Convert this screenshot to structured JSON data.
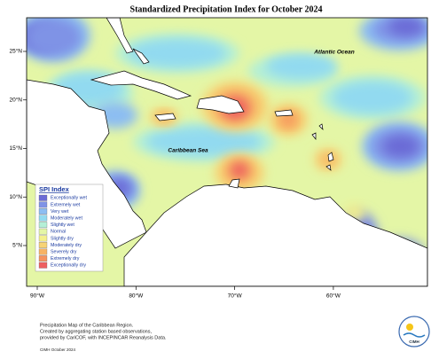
{
  "title": "Standardized Precipitation Index for October 2024",
  "map": {
    "lon_ticks": [
      {
        "value": -90,
        "label": "90°W"
      },
      {
        "value": -80,
        "label": "80°W"
      },
      {
        "value": -70,
        "label": "70°W"
      },
      {
        "value": -60,
        "label": "60°W"
      }
    ],
    "lat_ticks": [
      {
        "value": 25,
        "label": "25°N"
      },
      {
        "value": 20,
        "label": "20°N"
      },
      {
        "value": 15,
        "label": "15°N"
      },
      {
        "value": 10,
        "label": "10°N"
      },
      {
        "value": 5,
        "label": "5°N"
      }
    ],
    "place_labels": [
      "Atlantic Ocean",
      "Caribbean Sea"
    ]
  },
  "legend": {
    "title": "SPI Index",
    "items": [
      {
        "label": "Exceptionally wet",
        "color": "#6b6bd6"
      },
      {
        "label": "Extremely wet",
        "color": "#7f93e6"
      },
      {
        "label": "Very wet",
        "color": "#8cbdf2"
      },
      {
        "label": "Moderately wet",
        "color": "#92daf0"
      },
      {
        "label": "Slightly wet",
        "color": "#b4efd6"
      },
      {
        "label": "Normal",
        "color": "#e4f6a6"
      },
      {
        "label": "Slightly dry",
        "color": "#f4f08c"
      },
      {
        "label": "Moderately dry",
        "color": "#f7d374"
      },
      {
        "label": "Severely dry",
        "color": "#f7b364"
      },
      {
        "label": "Extremely dry",
        "color": "#f6935e"
      },
      {
        "label": "Exceptionally dry",
        "color": "#ee5f5f"
      }
    ]
  },
  "footer": {
    "lines": [
      "Precipitation Map of the Caribbean Region.",
      "Created by aggregating station based observations,",
      "provided by CariCOF, with INCEPINCAR Reanalysis Data."
    ],
    "credit": "CIMH October 2024",
    "logo": "CIMH"
  }
}
